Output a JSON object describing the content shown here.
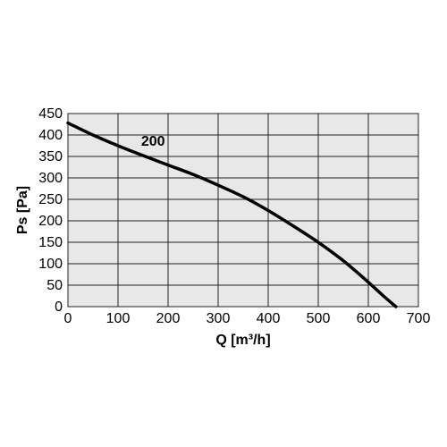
{
  "chart_data": {
    "type": "line",
    "xlabel": "Q [m³/h]",
    "ylabel": "Ps [Pa]",
    "xlim": [
      0,
      700
    ],
    "ylim": [
      0,
      450
    ],
    "x_ticks": [
      0,
      100,
      200,
      300,
      400,
      500,
      600,
      700
    ],
    "y_ticks": [
      0,
      50,
      100,
      150,
      200,
      250,
      300,
      350,
      400,
      450
    ],
    "grid": true,
    "plot_background": "#e8e8e8",
    "grid_color": "#222222",
    "series": [
      {
        "name": "200",
        "color": "#000000",
        "x": [
          0,
          50,
          100,
          150,
          200,
          250,
          300,
          350,
          400,
          450,
          500,
          550,
          600,
          630,
          655
        ],
        "y": [
          428,
          400,
          375,
          352,
          330,
          308,
          283,
          256,
          224,
          188,
          150,
          107,
          57,
          25,
          0
        ]
      }
    ],
    "annotations": [
      {
        "text": "200",
        "x": 170,
        "y": 375
      }
    ]
  }
}
